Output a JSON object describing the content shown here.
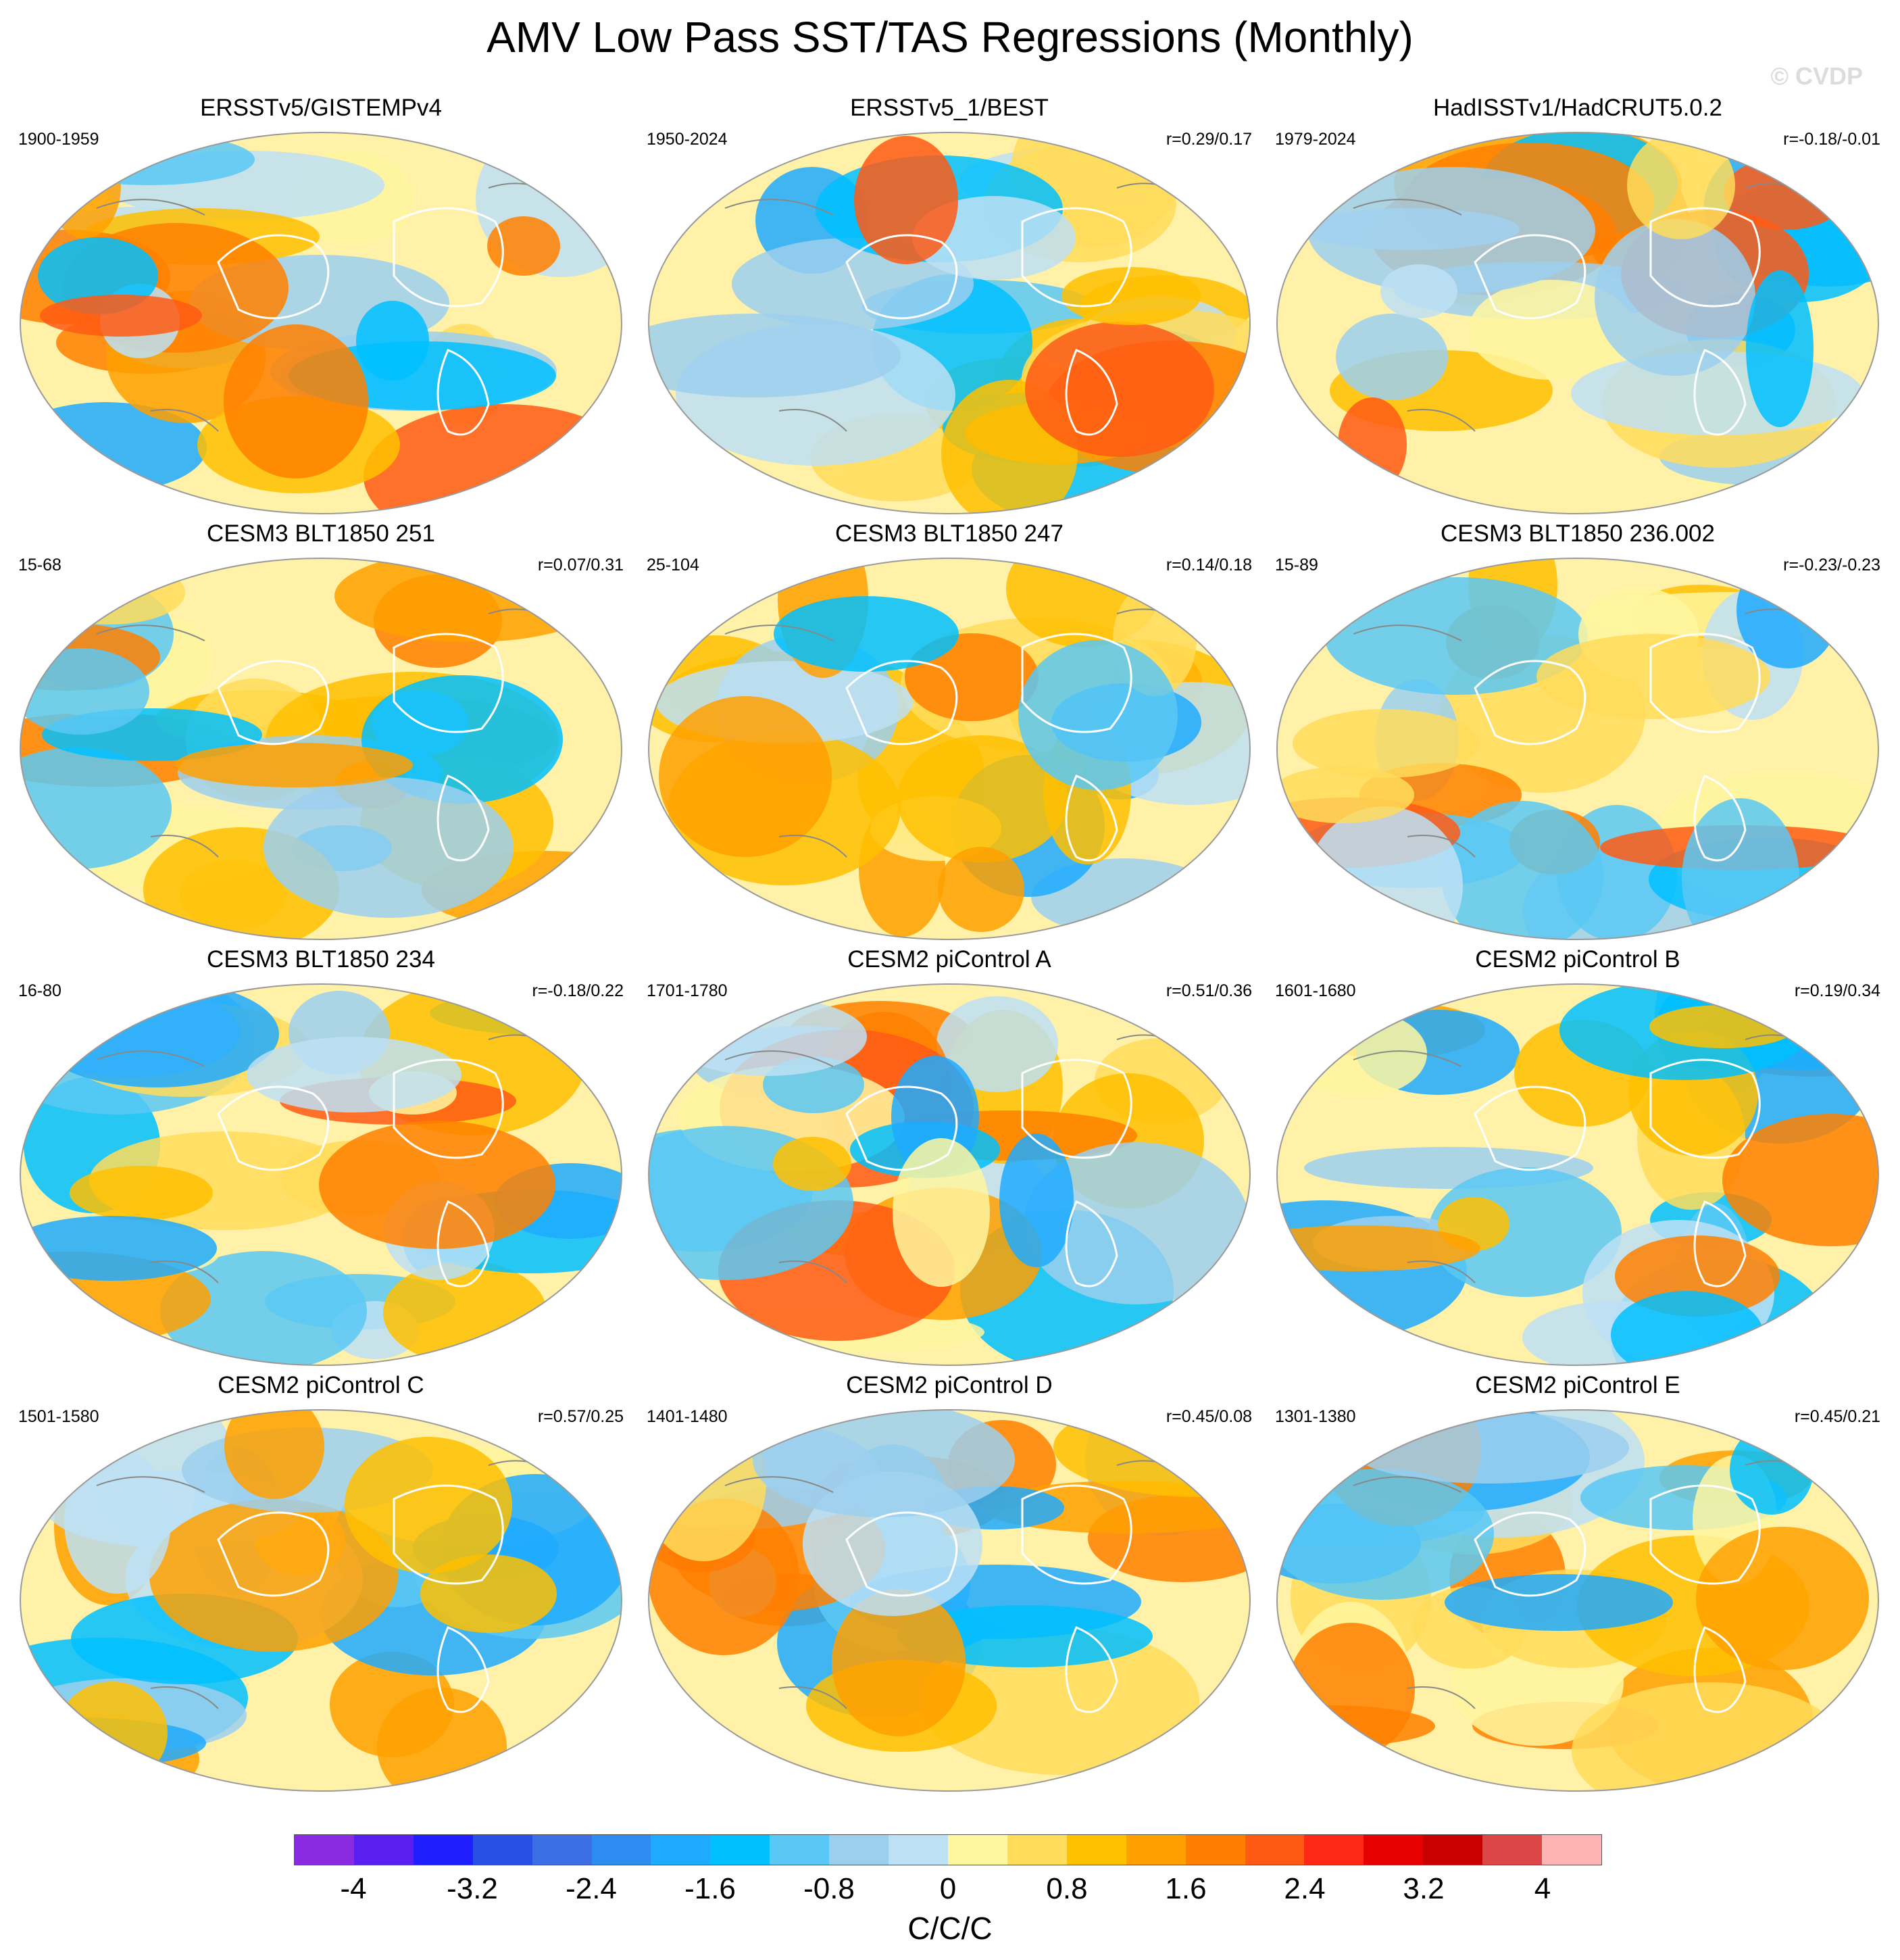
{
  "title": "AMV Low Pass SST/TAS Regressions (Monthly)",
  "watermark": "© CVDP",
  "panels": [
    {
      "title": "ERSSTv5/GISTEMPv4",
      "period": "1900-1959",
      "corr": ""
    },
    {
      "title": "ERSSTv5_1/BEST",
      "period": "1950-2024",
      "corr": "r=0.29/0.17"
    },
    {
      "title": "HadISSTv1/HadCRUT5.0.2",
      "period": "1979-2024",
      "corr": "r=-0.18/-0.01"
    },
    {
      "title": "CESM3 BLT1850 251",
      "period": "15-68",
      "corr": "r=0.07/0.31"
    },
    {
      "title": "CESM3 BLT1850 247",
      "period": "25-104",
      "corr": "r=0.14/0.18"
    },
    {
      "title": "CESM3 BLT1850 236.002",
      "period": "15-89",
      "corr": "r=-0.23/-0.23"
    },
    {
      "title": "CESM3 BLT1850 234",
      "period": "16-80",
      "corr": "r=-0.18/0.22"
    },
    {
      "title": "CESM2 piControl A",
      "period": "1701-1780",
      "corr": "r=0.51/0.36"
    },
    {
      "title": "CESM2 piControl B",
      "period": "1601-1680",
      "corr": "r=0.19/0.34"
    },
    {
      "title": "CESM2 piControl C",
      "period": "1501-1580",
      "corr": "r=0.57/0.25"
    },
    {
      "title": "CESM2 piControl D",
      "period": "1401-1480",
      "corr": "r=0.45/0.08"
    },
    {
      "title": "CESM2 piControl E",
      "period": "1301-1380",
      "corr": "r=0.45/0.21"
    }
  ],
  "colorbar": {
    "colors": [
      "#8a2be2",
      "#5a1ef0",
      "#1e1eff",
      "#2850e6",
      "#3c6ee6",
      "#2d8cf0",
      "#1eaaff",
      "#00c0ff",
      "#5ac8f5",
      "#9ccfee",
      "#bde0f5",
      "#fff6a0",
      "#ffdc5a",
      "#ffc000",
      "#ffa000",
      "#ff8000",
      "#ff5a14",
      "#ff2814",
      "#e60000",
      "#c80000",
      "#dc4646",
      "#ffb4b4"
    ],
    "tick_labels": [
      "-4",
      "-3.2",
      "-2.4",
      "-1.6",
      "-0.8",
      "0",
      "0.8",
      "1.6",
      "2.4",
      "3.2",
      "4"
    ],
    "units": "C/C/C",
    "range": [
      -4.4,
      4.4
    ]
  }
}
